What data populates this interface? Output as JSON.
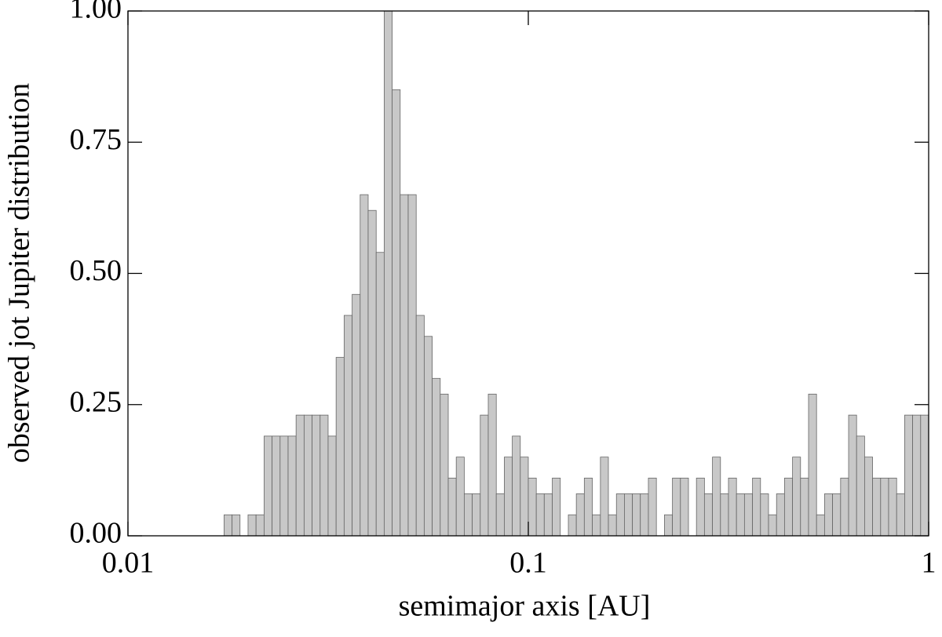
{
  "chart_data": {
    "type": "histogram",
    "x_label": "semimajor axis [AU]",
    "y_label": "observed jot Jupiter distribution",
    "xscale": "log",
    "color": "#c8c8c8",
    "xlim": [
      0.01,
      1
    ],
    "xticks": [
      0.01,
      0.1,
      1
    ],
    "ylim": [
      0,
      1
    ],
    "yticks": [
      {
        "value": 0,
        "label": "0.00"
      },
      {
        "value": 0.25,
        "label": "0.25"
      },
      {
        "value": 0.5,
        "label": "0.50"
      },
      {
        "value": 0.75,
        "label": "0.75"
      },
      {
        "value": 1,
        "label": "1.00"
      }
    ],
    "bins": [
      0.01738,
      0.0182,
      0.01905,
      0.01995,
      0.02089,
      0.02188,
      0.02291,
      0.02399,
      0.02512,
      0.0263,
      0.02754,
      0.02884,
      0.0302,
      0.03162,
      0.03311,
      0.03467,
      0.03631,
      0.03802,
      0.03981,
      0.04169,
      0.04365,
      0.04571,
      0.04786,
      0.05012,
      0.05248,
      0.05495,
      0.05754,
      0.06026,
      0.0631,
      0.06607,
      0.06918,
      0.07244,
      0.07586,
      0.07943,
      0.08318,
      0.0871,
      0.0912,
      0.0955,
      0.1,
      0.1047,
      0.1096,
      0.1148,
      0.1202,
      0.1259,
      0.1318,
      0.138,
      0.1445,
      0.1514,
      0.1585,
      0.166,
      0.1738,
      0.182,
      0.1905,
      0.1995,
      0.2089,
      0.2188,
      0.2291,
      0.2399,
      0.2512,
      0.263,
      0.2754,
      0.2884,
      0.302,
      0.3162,
      0.3311,
      0.3467,
      0.3631,
      0.3802,
      0.3981,
      0.4169,
      0.4365,
      0.4571,
      0.4786,
      0.5012,
      0.5248,
      0.5495,
      0.5754,
      0.6026,
      0.631,
      0.6607,
      0.6918,
      0.7244,
      0.7586,
      0.7943,
      0.8318,
      0.871,
      0.912,
      0.955,
      1
    ],
    "values": [
      0.04,
      0.04,
      0,
      0.04,
      0.04,
      0.19,
      0.19,
      0.19,
      0.19,
      0.23,
      0.23,
      0.23,
      0.23,
      0.19,
      0.34,
      0.42,
      0.46,
      0.65,
      0.62,
      0.54,
      1.0,
      0.85,
      0.65,
      0.65,
      0.42,
      0.38,
      0.3,
      0.27,
      0.11,
      0.15,
      0.08,
      0.08,
      0.23,
      0.27,
      0.08,
      0.15,
      0.19,
      0.15,
      0.11,
      0.08,
      0.08,
      0.11,
      0,
      0.04,
      0.08,
      0.11,
      0.04,
      0.15,
      0.04,
      0.08,
      0.08,
      0.08,
      0.08,
      0.11,
      0,
      0.04,
      0.11,
      0.11,
      0,
      0.11,
      0.08,
      0.15,
      0.08,
      0.11,
      0.08,
      0.08,
      0.11,
      0.08,
      0.04,
      0.08,
      0.11,
      0.15,
      0.11,
      0.27,
      0.04,
      0.08,
      0.08,
      0.11,
      0.23,
      0.19,
      0.15,
      0.11,
      0.11,
      0.11,
      0.08,
      0.23,
      0.23,
      0.23
    ]
  }
}
